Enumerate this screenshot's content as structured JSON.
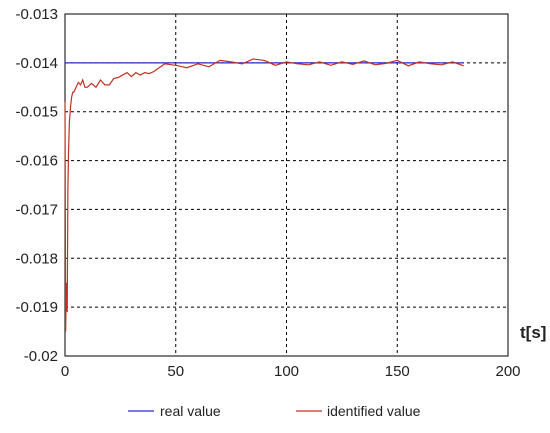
{
  "chart_data": {
    "type": "line",
    "xlabel": "t[s]",
    "xlim": [
      0,
      200
    ],
    "ylim": [
      -0.02,
      -0.013
    ],
    "x_ticks": [
      0,
      50,
      100,
      150,
      200
    ],
    "y_ticks": [
      -0.013,
      -0.014,
      -0.015,
      -0.016,
      -0.017,
      -0.018,
      -0.019,
      -0.02
    ],
    "x_tick_labels": [
      "0",
      "50",
      "100",
      "150",
      "200"
    ],
    "y_tick_labels": [
      "-0.013",
      "-0.014",
      "-0.015",
      "-0.016",
      "-0.017",
      "-0.018",
      "-0.019",
      "-0.02"
    ],
    "grid": true,
    "legend_position": "bottom",
    "series": [
      {
        "name": "real value",
        "color": "#2b2bd6",
        "x": [
          0,
          180
        ],
        "y": [
          -0.014,
          -0.014
        ]
      },
      {
        "name": "identified value",
        "color": "#c0311f",
        "x": [
          0,
          0.3,
          0.6,
          1,
          1.3,
          1.6,
          2,
          2.5,
          3,
          3.5,
          4,
          5,
          6,
          7,
          8,
          9,
          10,
          12,
          14,
          16,
          18,
          20,
          22,
          24,
          26,
          28,
          30,
          32,
          34,
          36,
          38,
          40,
          45,
          50,
          55,
          60,
          65,
          70,
          75,
          80,
          85,
          90,
          95,
          100,
          105,
          110,
          115,
          120,
          125,
          130,
          135,
          140,
          145,
          150,
          155,
          160,
          165,
          170,
          175,
          180
        ],
        "y": [
          -0.0148,
          -0.0195,
          -0.0185,
          -0.0191,
          -0.0166,
          -0.0158,
          -0.0152,
          -0.0149,
          -0.0147,
          -0.0146,
          -0.0146,
          -0.0145,
          -0.0144,
          -0.01445,
          -0.01435,
          -0.0145,
          -0.0145,
          -0.01442,
          -0.0145,
          -0.01435,
          -0.01445,
          -0.01445,
          -0.01432,
          -0.0143,
          -0.01425,
          -0.0142,
          -0.01428,
          -0.0142,
          -0.01425,
          -0.0142,
          -0.01422,
          -0.01418,
          -0.01402,
          -0.01405,
          -0.0141,
          -0.01402,
          -0.01408,
          -0.01395,
          -0.01398,
          -0.01402,
          -0.01392,
          -0.01395,
          -0.01405,
          -0.01398,
          -0.01402,
          -0.01404,
          -0.01398,
          -0.01405,
          -0.01398,
          -0.01403,
          -0.01396,
          -0.01404,
          -0.01401,
          -0.01395,
          -0.01406,
          -0.01398,
          -0.01402,
          -0.01404,
          -0.01398,
          -0.01406
        ]
      }
    ]
  }
}
